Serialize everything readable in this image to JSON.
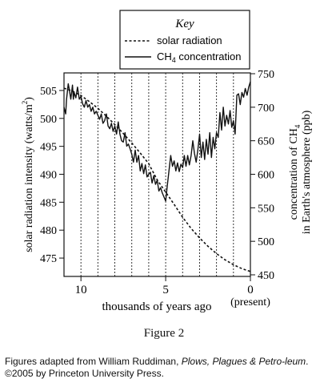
{
  "chart_data": {
    "type": "line",
    "key": {
      "title": "Key",
      "entries": [
        {
          "name": "solar radiation",
          "style": "dashed"
        },
        {
          "name_main": "CH",
          "name_sub": "4",
          "name_rest": " concentration",
          "style": "solid"
        }
      ]
    },
    "x_axis": {
      "label": "thousands of years ago",
      "range": [
        11,
        0
      ],
      "reversed": true,
      "ticks": [
        "10",
        "5",
        "0"
      ],
      "tick_values": [
        10,
        5,
        0
      ],
      "end_note": "(present)"
    },
    "y_left": {
      "label_main": "solar radiation intensity (watts/m",
      "label_sup": "2",
      "label_end": ")",
      "range": [
        472,
        508
      ],
      "ticks": [
        475,
        480,
        485,
        490,
        495,
        500,
        505
      ]
    },
    "y_right": {
      "label_line1_main": "concentration of CH",
      "label_line1_sub": "4",
      "label_line2": "in Earth's atmosphere (ppb)",
      "range": [
        450,
        750
      ],
      "ticks": [
        450,
        500,
        550,
        600,
        650,
        700,
        750
      ]
    },
    "vertical_lines": [
      10,
      9,
      8,
      7,
      6,
      5,
      4,
      3,
      2,
      1
    ],
    "series": [
      {
        "name": "solar radiation",
        "axis": "left",
        "style": "dashed",
        "x": [
          11,
          10.5,
          10,
          9.5,
          9,
          8.5,
          8,
          7.5,
          7,
          6.5,
          6,
          5.5,
          5,
          4.5,
          4,
          3.5,
          3,
          2.5,
          2,
          1.5,
          1,
          0.5,
          0
        ],
        "y": [
          505.4,
          504.9,
          504.1,
          503.0,
          501.8,
          500.4,
          498.9,
          497.3,
          495.6,
          493.8,
          491.9,
          489.0,
          486.8,
          484.6,
          482.3,
          480.3,
          478.6,
          477.1,
          475.8,
          474.7,
          473.8,
          473.1,
          472.6
        ]
      },
      {
        "name": "CH4 concentration",
        "axis": "right",
        "style": "solid",
        "x": [
          11,
          10.9,
          10.85,
          10.75,
          10.7,
          10.6,
          10.5,
          10.45,
          10.4,
          10.3,
          10.2,
          10.1,
          10.0,
          9.9,
          9.8,
          9.7,
          9.6,
          9.5,
          9.4,
          9.3,
          9.2,
          9.1,
          9.0,
          8.9,
          8.8,
          8.7,
          8.6,
          8.5,
          8.4,
          8.3,
          8.2,
          8.1,
          8.0,
          7.9,
          7.8,
          7.7,
          7.6,
          7.5,
          7.4,
          7.3,
          7.2,
          7.1,
          7.0,
          6.9,
          6.8,
          6.7,
          6.6,
          6.5,
          6.4,
          6.3,
          6.2,
          6.1,
          6.0,
          5.9,
          5.8,
          5.7,
          5.6,
          5.5,
          5.4,
          5.3,
          5.2,
          5.1,
          5.0,
          4.9,
          4.8,
          4.7,
          4.6,
          4.5,
          4.4,
          4.3,
          4.2,
          4.1,
          4.0,
          3.9,
          3.8,
          3.7,
          3.6,
          3.5,
          3.4,
          3.3,
          3.2,
          3.1,
          3.0,
          2.9,
          2.8,
          2.7,
          2.6,
          2.5,
          2.4,
          2.3,
          2.2,
          2.1,
          2.0,
          1.9,
          1.8,
          1.7,
          1.6,
          1.5,
          1.4,
          1.3,
          1.2,
          1.1,
          1.0,
          0.9,
          0.8,
          0.7,
          0.6,
          0.5,
          0.4,
          0.3,
          0.2,
          0.1,
          0
        ],
        "y": [
          700,
          690,
          712,
          735,
          728,
          712,
          733,
          712,
          722,
          714,
          730,
          712,
          716,
          705,
          700,
          710,
          700,
          704,
          694,
          700,
          690,
          694,
          688,
          682,
          690,
          676,
          680,
          690,
          672,
          668,
          676,
          664,
          672,
          660,
          678,
          660,
          650,
          648,
          662,
          642,
          645,
          638,
          630,
          618,
          636,
          618,
          628,
          605,
          616,
          601,
          614,
          596,
          600,
          603,
          587,
          598,
          585,
          591,
          575,
          580,
          572,
          566,
          560,
          584,
          606,
          628,
          612,
          620,
          605,
          617,
          604,
          615,
          610,
          628,
          612,
          628,
          614,
          628,
          650,
          631,
          618,
          636,
          660,
          625,
          648,
          622,
          652,
          630,
          662,
          625,
          655,
          638,
          662,
          655,
          692,
          666,
          700,
          672,
          688,
          675,
          695,
          670,
          680,
          660,
          718,
          720,
          704,
          722,
          715,
          728,
          718,
          730,
          738
        ]
      }
    ],
    "figure_label": "Figure 2"
  },
  "credit": {
    "prefix": "Figures adapted from William Ruddiman, ",
    "book_title": "Plows, Plagues & Petro-leum",
    "suffix": ". ©2005 by Princeton University Press."
  }
}
